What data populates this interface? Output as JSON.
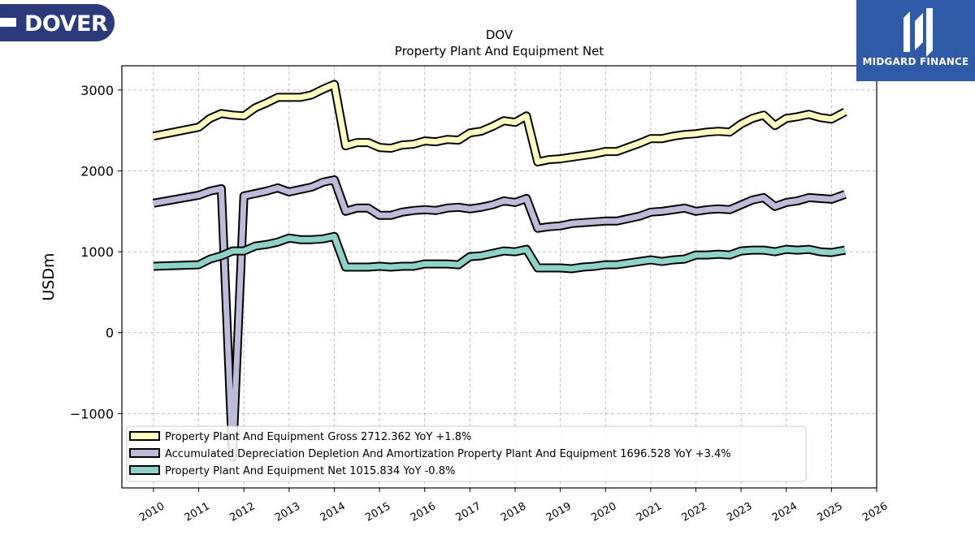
{
  "logos": {
    "left_text": "DOVER",
    "right_text": "MIDGARD FINANCE",
    "left_color": "#2b3a7a",
    "right_color": "#2f5aa8"
  },
  "chart_data": {
    "type": "line",
    "title": "DOV",
    "subtitle": "Property Plant And Equipment Net",
    "ylabel": "USDm",
    "xlabel": "",
    "xlim": [
      2009.3,
      2026.0
    ],
    "ylim": [
      -1920,
      3300
    ],
    "yticks": [
      -1000,
      0,
      1000,
      2000,
      3000
    ],
    "xticks": [
      2010,
      2011,
      2012,
      2013,
      2014,
      2015,
      2016,
      2017,
      2018,
      2019,
      2020,
      2021,
      2022,
      2023,
      2024,
      2025,
      2026
    ],
    "grid": true,
    "legend_position": "bottom-left",
    "x": [
      2010.0,
      2011.0,
      2011.25,
      2011.5,
      2011.75,
      2012.0,
      2012.25,
      2012.5,
      2012.75,
      2013.0,
      2013.25,
      2013.5,
      2013.75,
      2014.0,
      2014.25,
      2014.5,
      2014.75,
      2015.0,
      2015.25,
      2015.5,
      2015.75,
      2016.0,
      2016.25,
      2016.5,
      2016.75,
      2017.0,
      2017.25,
      2017.5,
      2017.75,
      2018.0,
      2018.25,
      2018.5,
      2018.75,
      2019.0,
      2019.25,
      2019.5,
      2019.75,
      2020.0,
      2020.25,
      2020.5,
      2020.75,
      2021.0,
      2021.25,
      2021.5,
      2021.75,
      2022.0,
      2022.25,
      2022.5,
      2022.75,
      2023.0,
      2023.25,
      2023.5,
      2023.75,
      2024.0,
      2024.25,
      2024.5,
      2024.75,
      2025.0,
      2025.3
    ],
    "series": [
      {
        "name": "Property Plant And Equipment Gross",
        "legend_label": "Property Plant And Equipment Gross  2712.362 YoY +1.8%",
        "color": "#ffffbf",
        "values": [
          2430,
          2540,
          2650,
          2710,
          2690,
          2680,
          2780,
          2840,
          2910,
          2910,
          2910,
          2940,
          3010,
          3070,
          2310,
          2350,
          2350,
          2290,
          2280,
          2320,
          2330,
          2370,
          2360,
          2390,
          2380,
          2470,
          2490,
          2550,
          2620,
          2600,
          2680,
          2110,
          2140,
          2150,
          2170,
          2190,
          2210,
          2240,
          2240,
          2290,
          2340,
          2400,
          2400,
          2430,
          2450,
          2460,
          2480,
          2490,
          2480,
          2580,
          2650,
          2690,
          2560,
          2650,
          2670,
          2700,
          2660,
          2640,
          2730
        ]
      },
      {
        "name": "Accumulated Depreciation Depletion And Amortization Property Plant And Equipment",
        "legend_label": "Accumulated Depreciation Depletion And Amortization Property Plant And Equipment  1696.528 YoY +3.4%",
        "color": "#bebada",
        "values": [
          1600,
          1700,
          1750,
          1780,
          -1540,
          1690,
          1720,
          1750,
          1790,
          1740,
          1770,
          1800,
          1860,
          1890,
          1500,
          1540,
          1540,
          1450,
          1450,
          1490,
          1510,
          1520,
          1510,
          1540,
          1550,
          1530,
          1550,
          1580,
          1630,
          1610,
          1660,
          1290,
          1310,
          1320,
          1350,
          1360,
          1370,
          1380,
          1380,
          1410,
          1440,
          1490,
          1500,
          1520,
          1540,
          1500,
          1520,
          1530,
          1520,
          1580,
          1640,
          1670,
          1560,
          1610,
          1630,
          1670,
          1660,
          1650,
          1710
        ]
      },
      {
        "name": "Property Plant And Equipment Net",
        "legend_label": "Property Plant And Equipment Net  1015.834 YoY -0.8%",
        "color": "#8dd3c7",
        "values": [
          820,
          840,
          910,
          950,
          1010,
          1010,
          1070,
          1090,
          1120,
          1170,
          1150,
          1150,
          1160,
          1190,
          810,
          810,
          810,
          820,
          810,
          820,
          820,
          850,
          850,
          850,
          840,
          940,
          950,
          980,
          1010,
          1000,
          1030,
          800,
          800,
          800,
          790,
          810,
          820,
          840,
          840,
          860,
          880,
          900,
          880,
          900,
          910,
          960,
          960,
          970,
          960,
          1010,
          1020,
          1020,
          1000,
          1030,
          1020,
          1030,
          1000,
          990,
          1020
        ]
      }
    ]
  }
}
